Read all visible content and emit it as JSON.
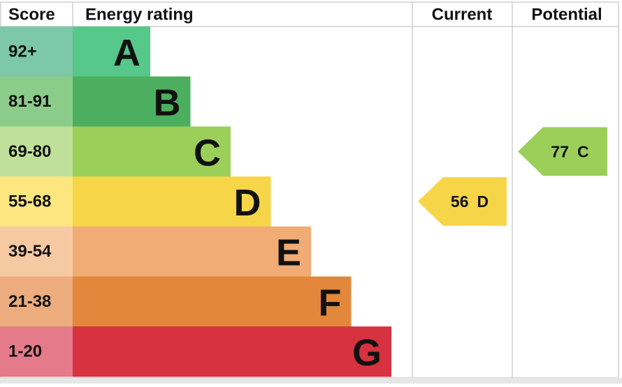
{
  "header": {
    "score": "Score",
    "rating": "Energy rating",
    "current": "Current",
    "potential": "Potential"
  },
  "bands": [
    {
      "score": "92+",
      "letter": "A",
      "color": "#55c88a",
      "score_color": "#7cc8a8"
    },
    {
      "score": "81-91",
      "letter": "B",
      "color": "#4caf5f",
      "score_color": "#8ccc8a"
    },
    {
      "score": "69-80",
      "letter": "C",
      "color": "#9bcf5a",
      "score_color": "#bfe09a"
    },
    {
      "score": "55-68",
      "letter": "D",
      "color": "#f6d548",
      "score_color": "#fbe67f"
    },
    {
      "score": "39-54",
      "letter": "E",
      "color": "#f0ac74",
      "score_color": "#f6c9a3"
    },
    {
      "score": "21-38",
      "letter": "F",
      "color": "#e2873b",
      "score_color": "#ecac7d"
    },
    {
      "score": "1-20",
      "letter": "G",
      "color": "#d6323f",
      "score_color": "#e47a8a"
    }
  ],
  "current": {
    "value": 56,
    "letter": "D"
  },
  "potential": {
    "value": 77,
    "letter": "C"
  }
}
